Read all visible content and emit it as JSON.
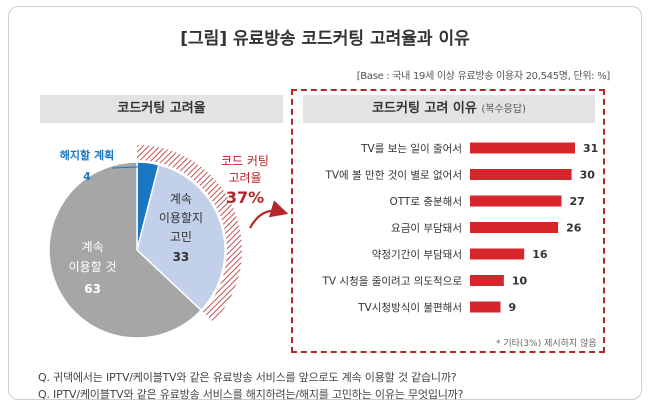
{
  "title": "[그림] 유료방송 코드커팅 고려율과 이유",
  "base_note": "[Base : 국내 19세 이상 유료방송 이용자 20,545명, 단위: %]",
  "left_panel": {
    "header": "코드커팅 고려율"
  },
  "right_panel": {
    "header": "코드커팅 고려 이유",
    "header_sub": "(복수응답)"
  },
  "colors": {
    "cancel": "#1a78c2",
    "considering": "#c3d0ea",
    "continue": "#a6a6a6",
    "accent": "#b5262b",
    "bar": "#d6262b"
  },
  "chart_data": [
    {
      "type": "pie",
      "title": "코드커팅 고려율",
      "slices": [
        {
          "label": "해지할 계획",
          "value": 4
        },
        {
          "label": "계속 이용할지 고민",
          "value": 33
        },
        {
          "label": "계속 이용할 것",
          "value": 63
        }
      ],
      "annotation": {
        "label_line1": "코드 커팅",
        "label_line2": "고려율",
        "value": "37%"
      }
    },
    {
      "type": "bar",
      "title": "코드커팅 고려 이유",
      "orientation": "horizontal",
      "categories": [
        "TV를 보는 일이 줄어서",
        "TV에 볼 만한 것이 별로 없어서",
        "OTT로 충분해서",
        "요금이 부담돼서",
        "약정기간이 부담돼서",
        "TV 시청을 줄이려고 의도적으로",
        "TV시청방식이 불편해서"
      ],
      "values": [
        31,
        30,
        27,
        26,
        16,
        10,
        9
      ],
      "footnote": "* 기타(3%) 제시하지 않음"
    }
  ],
  "questions": [
    "Q. 귀댁에서는 IPTV/케이블TV와 같은 유료방송 서비스를 앞으로도 계속 이용할 것 같습니까?",
    "Q. IPTV/케이블TV와 같은 유료방송 서비스를 해지하려는/해지를 고민하는 이유는 무엇입니까?"
  ]
}
